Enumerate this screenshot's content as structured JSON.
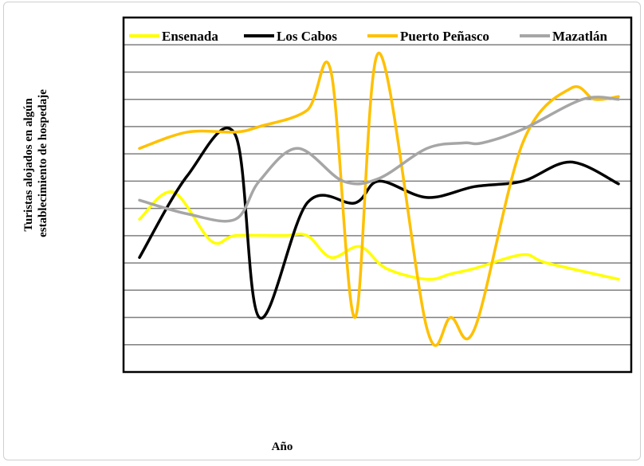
{
  "chart_data": {
    "type": "line",
    "title": "",
    "xlabel": "Año",
    "ylabel": "Turistas alojados en algún establecimiento de hospedaje",
    "ylabel_lines": [
      "Turistas alojados en algún",
      "establecimiento de hospedaje"
    ],
    "grid": "horizontal",
    "legend_position": "top",
    "x_count": 20,
    "ylim": [
      0,
      13
    ],
    "series": [
      {
        "name": "Ensenada",
        "color": "#ffff00",
        "values": [
          5.6,
          6.6,
          4.8,
          5.0,
          5.0,
          5.0,
          4.2,
          4.6,
          3.8,
          3.4,
          3.6,
          3.8,
          4.3,
          4.0,
          3.4
        ]
      },
      {
        "name": "Los Cabos",
        "color": "#000000",
        "values": [
          4.2,
          7.2,
          8.7,
          2.0,
          6.2,
          6.2,
          7.0,
          6.4,
          6.8,
          7.0,
          7.7,
          6.9
        ]
      },
      {
        "name": "Puerto Peñasco",
        "color": "#ffc000",
        "values": [
          8.2,
          8.8,
          8.8,
          9.0,
          9.6,
          11.0,
          2.0,
          11.7,
          1.6,
          2.0,
          1.6,
          8.4,
          10.4,
          10.0,
          10.1
        ]
      },
      {
        "name": "Mazatlán",
        "color": "#a6a6a6",
        "values": [
          6.3,
          5.8,
          5.6,
          7.0,
          8.2,
          7.0,
          7.1,
          8.2,
          8.4,
          8.4,
          8.9,
          10.0,
          10.0
        ]
      }
    ],
    "series_x": [
      [
        0,
        1.4,
        3,
        4,
        6,
        7,
        8,
        9.2,
        10.3,
        12,
        13,
        14,
        16,
        17,
        20
      ],
      [
        0,
        2,
        4,
        5,
        7,
        9,
        10,
        12,
        14,
        16,
        18,
        20
      ],
      [
        0,
        2,
        4,
        5,
        7,
        8,
        9,
        10,
        12,
        13,
        14,
        16,
        18,
        19,
        20
      ],
      [
        0,
        2,
        4,
        5,
        6.6,
        8.5,
        10,
        12,
        13.5,
        14.3,
        16,
        18.5,
        20
      ]
    ]
  }
}
